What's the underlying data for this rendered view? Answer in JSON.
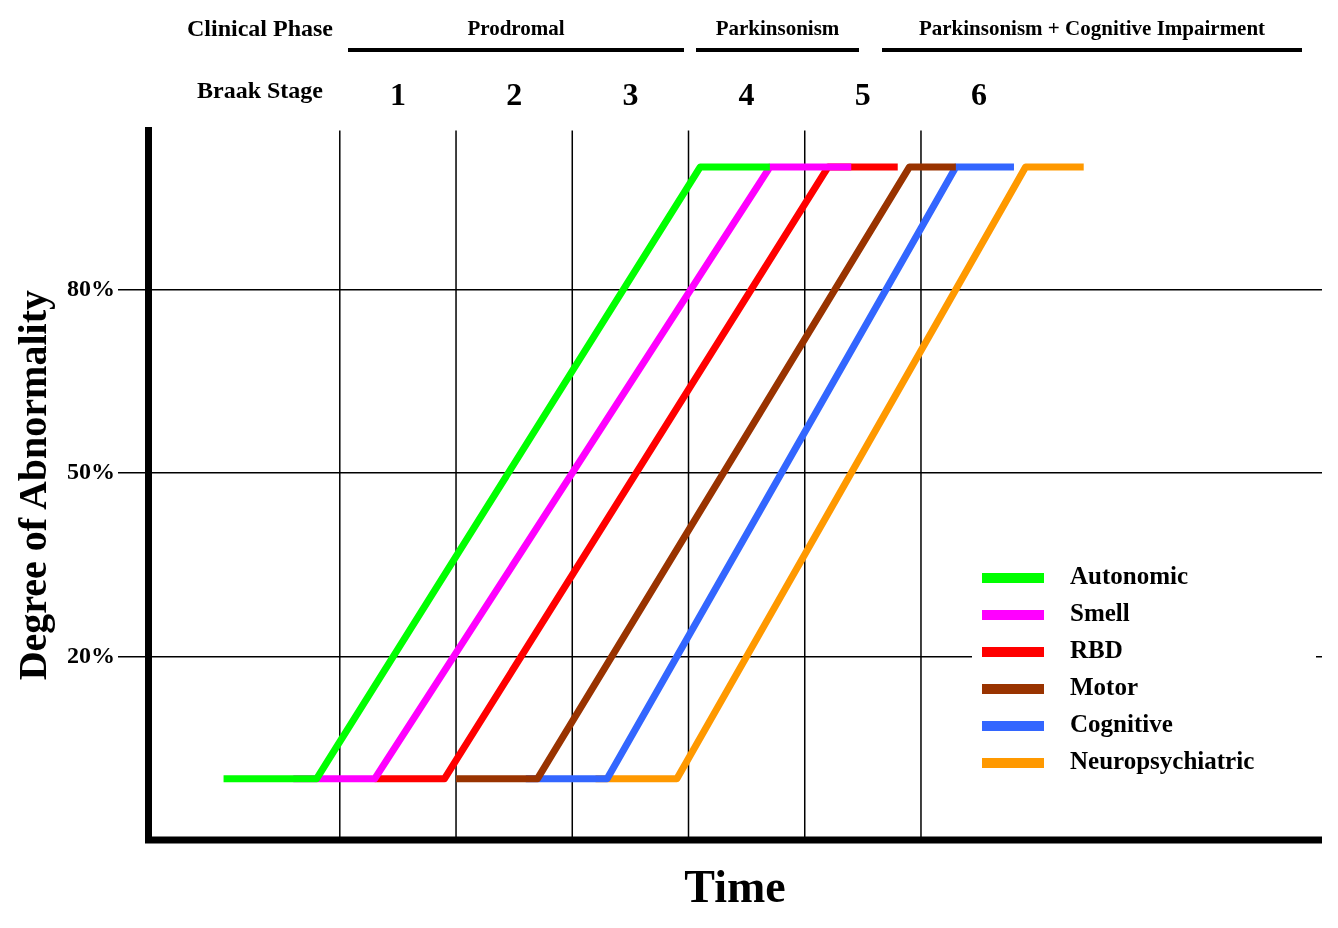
{
  "chart_data": {
    "type": "line",
    "xlabel": "Time",
    "ylabel": "Degree of Abnormality",
    "x2label": "Braak Stage",
    "annotations": [
      "Clinical Phase",
      "Prodromal",
      "Parkinsonism",
      "Parkinsonism + Cognitive Impairment"
    ],
    "xlim": [
      -1.15,
      8.95
    ],
    "ylim": [
      -10,
      106
    ],
    "xticks": [
      1,
      2,
      3,
      4,
      5,
      6
    ],
    "yticks": [
      {
        "value": 20,
        "label": "20%"
      },
      {
        "value": 50,
        "label": "50%"
      },
      {
        "value": 80,
        "label": "80%"
      }
    ],
    "grid": "y",
    "legend": "bottom right",
    "marker": "none",
    "line_style": "solid",
    "ref_lines": [
      {
        "axis": "x",
        "value": 0.5,
        "color": "#000000"
      },
      {
        "axis": "x",
        "value": 1.5,
        "color": "#000000"
      },
      {
        "axis": "x",
        "value": 2.5,
        "color": "#000000"
      },
      {
        "axis": "x",
        "value": 3.5,
        "color": "#000000"
      },
      {
        "axis": "x",
        "value": 4.5,
        "color": "#000000"
      },
      {
        "axis": "x",
        "value": 5.5,
        "color": "#000000"
      }
    ],
    "series": [
      {
        "name": "Autonomic",
        "color": "#00ff00",
        "x": [
          -0.5,
          0.3,
          3.6,
          4.2
        ],
        "values": [
          0,
          0,
          100,
          100
        ]
      },
      {
        "name": "Smell",
        "color": "#ff00ff",
        "x": [
          0.1,
          0.8,
          4.2,
          4.9
        ],
        "values": [
          0,
          0,
          100,
          100
        ]
      },
      {
        "name": "RBD",
        "color": "#ff0000",
        "x": [
          0.8,
          1.4,
          4.7,
          5.3
        ],
        "values": [
          0,
          0,
          100,
          100
        ]
      },
      {
        "name": "Motor",
        "color": "#993300",
        "x": [
          1.5,
          2.2,
          5.4,
          5.8
        ],
        "values": [
          0,
          0,
          100,
          100
        ]
      },
      {
        "name": "Cognitive",
        "color": "#3366ff",
        "x": [
          2.1,
          2.8,
          5.8,
          6.3
        ],
        "values": [
          0,
          0,
          100,
          100
        ]
      },
      {
        "name": "Neuropsychiatric",
        "color": "#ff9900",
        "x": [
          2.7,
          3.4,
          6.4,
          6.9
        ],
        "values": [
          0,
          0,
          100,
          100
        ]
      }
    ]
  }
}
